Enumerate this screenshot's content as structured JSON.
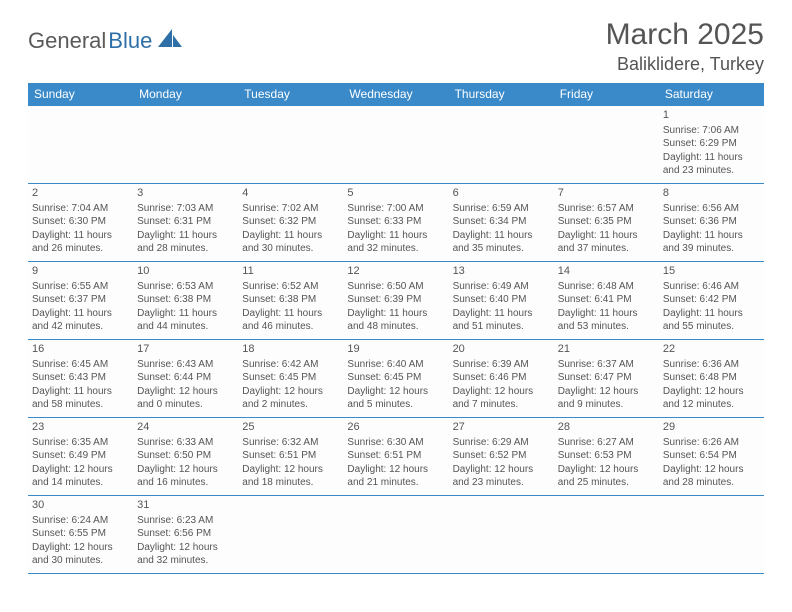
{
  "brand": {
    "part1": "General",
    "part2": "Blue"
  },
  "title": "March 2025",
  "location": "Baliklidere, Turkey",
  "day_headers": [
    "Sunday",
    "Monday",
    "Tuesday",
    "Wednesday",
    "Thursday",
    "Friday",
    "Saturday"
  ],
  "header_bg": "#3a89c9",
  "header_fg": "#ffffff",
  "border_color": "#3a89c9",
  "text_color": "#555555",
  "weeks": [
    [
      null,
      null,
      null,
      null,
      null,
      null,
      {
        "n": "1",
        "sr": "Sunrise: 7:06 AM",
        "ss": "Sunset: 6:29 PM",
        "d1": "Daylight: 11 hours",
        "d2": "and 23 minutes."
      }
    ],
    [
      {
        "n": "2",
        "sr": "Sunrise: 7:04 AM",
        "ss": "Sunset: 6:30 PM",
        "d1": "Daylight: 11 hours",
        "d2": "and 26 minutes."
      },
      {
        "n": "3",
        "sr": "Sunrise: 7:03 AM",
        "ss": "Sunset: 6:31 PM",
        "d1": "Daylight: 11 hours",
        "d2": "and 28 minutes."
      },
      {
        "n": "4",
        "sr": "Sunrise: 7:02 AM",
        "ss": "Sunset: 6:32 PM",
        "d1": "Daylight: 11 hours",
        "d2": "and 30 minutes."
      },
      {
        "n": "5",
        "sr": "Sunrise: 7:00 AM",
        "ss": "Sunset: 6:33 PM",
        "d1": "Daylight: 11 hours",
        "d2": "and 32 minutes."
      },
      {
        "n": "6",
        "sr": "Sunrise: 6:59 AM",
        "ss": "Sunset: 6:34 PM",
        "d1": "Daylight: 11 hours",
        "d2": "and 35 minutes."
      },
      {
        "n": "7",
        "sr": "Sunrise: 6:57 AM",
        "ss": "Sunset: 6:35 PM",
        "d1": "Daylight: 11 hours",
        "d2": "and 37 minutes."
      },
      {
        "n": "8",
        "sr": "Sunrise: 6:56 AM",
        "ss": "Sunset: 6:36 PM",
        "d1": "Daylight: 11 hours",
        "d2": "and 39 minutes."
      }
    ],
    [
      {
        "n": "9",
        "sr": "Sunrise: 6:55 AM",
        "ss": "Sunset: 6:37 PM",
        "d1": "Daylight: 11 hours",
        "d2": "and 42 minutes."
      },
      {
        "n": "10",
        "sr": "Sunrise: 6:53 AM",
        "ss": "Sunset: 6:38 PM",
        "d1": "Daylight: 11 hours",
        "d2": "and 44 minutes."
      },
      {
        "n": "11",
        "sr": "Sunrise: 6:52 AM",
        "ss": "Sunset: 6:38 PM",
        "d1": "Daylight: 11 hours",
        "d2": "and 46 minutes."
      },
      {
        "n": "12",
        "sr": "Sunrise: 6:50 AM",
        "ss": "Sunset: 6:39 PM",
        "d1": "Daylight: 11 hours",
        "d2": "and 48 minutes."
      },
      {
        "n": "13",
        "sr": "Sunrise: 6:49 AM",
        "ss": "Sunset: 6:40 PM",
        "d1": "Daylight: 11 hours",
        "d2": "and 51 minutes."
      },
      {
        "n": "14",
        "sr": "Sunrise: 6:48 AM",
        "ss": "Sunset: 6:41 PM",
        "d1": "Daylight: 11 hours",
        "d2": "and 53 minutes."
      },
      {
        "n": "15",
        "sr": "Sunrise: 6:46 AM",
        "ss": "Sunset: 6:42 PM",
        "d1": "Daylight: 11 hours",
        "d2": "and 55 minutes."
      }
    ],
    [
      {
        "n": "16",
        "sr": "Sunrise: 6:45 AM",
        "ss": "Sunset: 6:43 PM",
        "d1": "Daylight: 11 hours",
        "d2": "and 58 minutes."
      },
      {
        "n": "17",
        "sr": "Sunrise: 6:43 AM",
        "ss": "Sunset: 6:44 PM",
        "d1": "Daylight: 12 hours",
        "d2": "and 0 minutes."
      },
      {
        "n": "18",
        "sr": "Sunrise: 6:42 AM",
        "ss": "Sunset: 6:45 PM",
        "d1": "Daylight: 12 hours",
        "d2": "and 2 minutes."
      },
      {
        "n": "19",
        "sr": "Sunrise: 6:40 AM",
        "ss": "Sunset: 6:45 PM",
        "d1": "Daylight: 12 hours",
        "d2": "and 5 minutes."
      },
      {
        "n": "20",
        "sr": "Sunrise: 6:39 AM",
        "ss": "Sunset: 6:46 PM",
        "d1": "Daylight: 12 hours",
        "d2": "and 7 minutes."
      },
      {
        "n": "21",
        "sr": "Sunrise: 6:37 AM",
        "ss": "Sunset: 6:47 PM",
        "d1": "Daylight: 12 hours",
        "d2": "and 9 minutes."
      },
      {
        "n": "22",
        "sr": "Sunrise: 6:36 AM",
        "ss": "Sunset: 6:48 PM",
        "d1": "Daylight: 12 hours",
        "d2": "and 12 minutes."
      }
    ],
    [
      {
        "n": "23",
        "sr": "Sunrise: 6:35 AM",
        "ss": "Sunset: 6:49 PM",
        "d1": "Daylight: 12 hours",
        "d2": "and 14 minutes."
      },
      {
        "n": "24",
        "sr": "Sunrise: 6:33 AM",
        "ss": "Sunset: 6:50 PM",
        "d1": "Daylight: 12 hours",
        "d2": "and 16 minutes."
      },
      {
        "n": "25",
        "sr": "Sunrise: 6:32 AM",
        "ss": "Sunset: 6:51 PM",
        "d1": "Daylight: 12 hours",
        "d2": "and 18 minutes."
      },
      {
        "n": "26",
        "sr": "Sunrise: 6:30 AM",
        "ss": "Sunset: 6:51 PM",
        "d1": "Daylight: 12 hours",
        "d2": "and 21 minutes."
      },
      {
        "n": "27",
        "sr": "Sunrise: 6:29 AM",
        "ss": "Sunset: 6:52 PM",
        "d1": "Daylight: 12 hours",
        "d2": "and 23 minutes."
      },
      {
        "n": "28",
        "sr": "Sunrise: 6:27 AM",
        "ss": "Sunset: 6:53 PM",
        "d1": "Daylight: 12 hours",
        "d2": "and 25 minutes."
      },
      {
        "n": "29",
        "sr": "Sunrise: 6:26 AM",
        "ss": "Sunset: 6:54 PM",
        "d1": "Daylight: 12 hours",
        "d2": "and 28 minutes."
      }
    ],
    [
      {
        "n": "30",
        "sr": "Sunrise: 6:24 AM",
        "ss": "Sunset: 6:55 PM",
        "d1": "Daylight: 12 hours",
        "d2": "and 30 minutes."
      },
      {
        "n": "31",
        "sr": "Sunrise: 6:23 AM",
        "ss": "Sunset: 6:56 PM",
        "d1": "Daylight: 12 hours",
        "d2": "and 32 minutes."
      },
      null,
      null,
      null,
      null,
      null
    ]
  ]
}
